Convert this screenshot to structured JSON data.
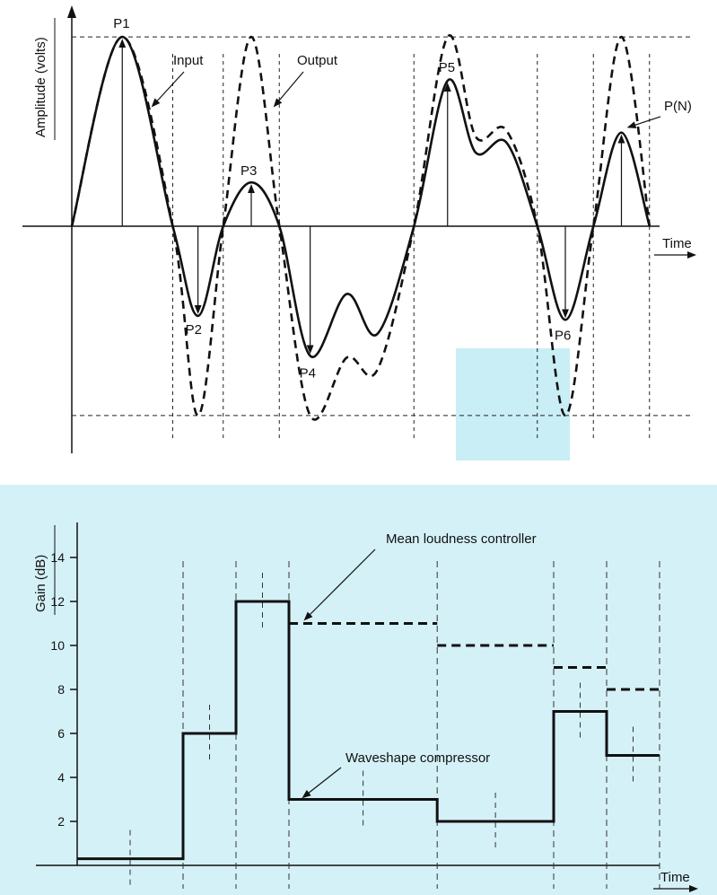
{
  "chart_data": [
    {
      "type": "line",
      "xlabel": "Time",
      "ylabel": "Amplitude (volts)",
      "series": [
        {
          "name": "Input",
          "points": [
            [
              0,
              0
            ],
            [
              0.09,
              0.95
            ],
            [
              0.18,
              0
            ],
            [
              0.225,
              -0.45
            ],
            [
              0.27,
              0
            ],
            [
              0.32,
              0.22
            ],
            [
              0.37,
              0
            ],
            [
              0.425,
              -0.65
            ],
            [
              0.49,
              -0.34
            ],
            [
              0.545,
              -0.54
            ],
            [
              0.61,
              0
            ],
            [
              0.67,
              0.73
            ],
            [
              0.72,
              0.37
            ],
            [
              0.775,
              0.42
            ],
            [
              0.83,
              0
            ],
            [
              0.88,
              -0.47
            ],
            [
              0.93,
              0
            ],
            [
              0.98,
              0.47
            ],
            [
              1.03,
              0
            ]
          ]
        },
        {
          "name": "Output",
          "points": [
            [
              0,
              0
            ],
            [
              0.09,
              0.95
            ],
            [
              0.18,
              0
            ],
            [
              0.225,
              -0.95
            ],
            [
              0.27,
              0
            ],
            [
              0.32,
              0.95
            ],
            [
              0.37,
              0
            ],
            [
              0.425,
              -0.95
            ],
            [
              0.49,
              -0.66
            ],
            [
              0.545,
              -0.72
            ],
            [
              0.61,
              0
            ],
            [
              0.67,
              0.95
            ],
            [
              0.72,
              0.45
            ],
            [
              0.775,
              0.48
            ],
            [
              0.83,
              0
            ],
            [
              0.88,
              -0.95
            ],
            [
              0.93,
              0
            ],
            [
              0.98,
              0.95
            ],
            [
              1.03,
              0
            ]
          ]
        }
      ],
      "peak_labels": [
        "P1",
        "P2",
        "P3",
        "P4",
        "P5",
        "P6",
        "P(N)"
      ],
      "annotations": [
        "Input",
        "Output"
      ],
      "colors": {
        "input": "#111111",
        "output": "#111111",
        "grid": "#222222",
        "highlight": "#c9eef5"
      }
    },
    {
      "type": "line",
      "xlabel": "Time",
      "ylabel": "Gain (dB)",
      "yticks": [
        2,
        4,
        6,
        8,
        10,
        12,
        14
      ],
      "ylim": [
        0,
        15.5
      ],
      "series": [
        {
          "name": "Waveshape compressor",
          "style": "solid",
          "steps": [
            [
              0,
              0.2,
              0.3
            ],
            [
              0.2,
              0.3,
              6
            ],
            [
              0.3,
              0.4,
              12
            ],
            [
              0.4,
              0.68,
              3
            ],
            [
              0.68,
              0.9,
              2
            ],
            [
              0.9,
              1.0,
              7
            ],
            [
              1.0,
              1.1,
              5
            ]
          ]
        },
        {
          "name": "Mean loudness controller",
          "style": "dashed",
          "steps": [
            [
              0.4,
              0.68,
              11
            ],
            [
              0.68,
              0.9,
              10
            ],
            [
              0.9,
              1.0,
              9
            ],
            [
              1.0,
              1.1,
              8
            ]
          ]
        }
      ],
      "colors": {
        "line": "#111111",
        "background": "#d4f1f7"
      }
    }
  ]
}
